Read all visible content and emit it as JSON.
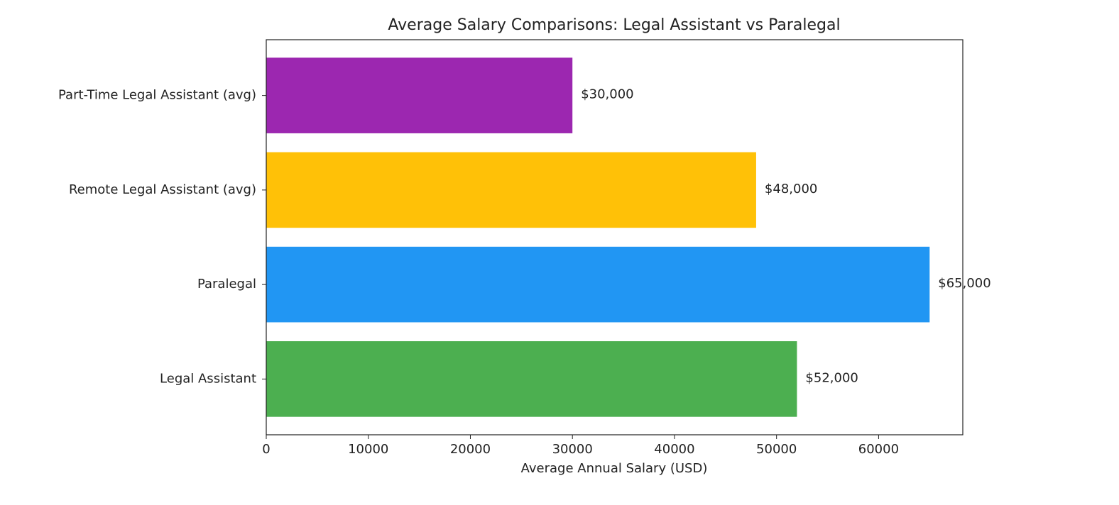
{
  "chart_data": {
    "type": "barh",
    "title": "Average Salary Comparisons: Legal Assistant vs Paralegal",
    "x_label": "Average Annual Salary (USD)",
    "categories": [
      "Legal Assistant",
      "Paralegal",
      "Remote Legal Assistant (avg)",
      "Part-Time Legal Assistant (avg)"
    ],
    "values": [
      52000,
      65000,
      48000,
      30000
    ],
    "value_labels": [
      "$52,000",
      "$65,000",
      "$48,000",
      "$30,000"
    ],
    "colors": [
      "#4caf50",
      "#2196f3",
      "#ffc107",
      "#9c27b0"
    ],
    "xlim": [
      0,
      68250
    ],
    "xticks": [
      0,
      10000,
      20000,
      30000,
      40000,
      50000,
      60000
    ],
    "grid": false
  }
}
